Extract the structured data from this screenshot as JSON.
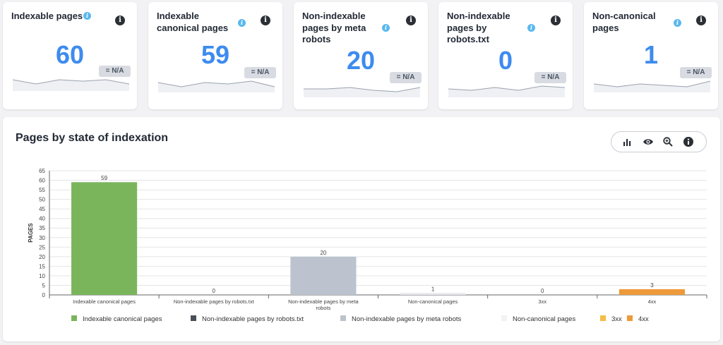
{
  "cards": [
    {
      "title": "Indexable pages",
      "value": "60",
      "badge": "= N/A",
      "spark": [
        7,
        4,
        7,
        6,
        7,
        4
      ]
    },
    {
      "title": "Indexable canonical pages",
      "value": "59",
      "badge": "= N/A",
      "spark": [
        6,
        3,
        6,
        5,
        7,
        3
      ]
    },
    {
      "title": "Non-indexable pages by meta robots",
      "value": "20",
      "badge": "= N/A",
      "spark": [
        5,
        5,
        6,
        4,
        3,
        6
      ]
    },
    {
      "title": "Non-indexable pages by robots.txt",
      "value": "0",
      "badge": "= N/A",
      "spark": [
        5,
        4,
        6,
        4,
        7,
        6
      ]
    },
    {
      "title": "Non-canonical pages",
      "value": "1",
      "badge": "= N/A",
      "spark": [
        5,
        3,
        5,
        4,
        3,
        7
      ]
    }
  ],
  "icons": {
    "title_info": "info-icon",
    "card_info": "info-icon",
    "toolbar": [
      "bar-chart-icon",
      "eye-icon",
      "zoom-icon",
      "info-icon"
    ]
  },
  "panel": {
    "title": "Pages by state of indexation"
  },
  "chart_data": {
    "type": "bar",
    "ylabel": "PAGES",
    "ylim": [
      0,
      65
    ],
    "yticks": [
      0,
      5,
      10,
      15,
      20,
      25,
      30,
      35,
      40,
      45,
      50,
      55,
      60,
      65
    ],
    "categories": [
      "Indexable canonical pages",
      "Non-indexable pages by robots.txt",
      "Non-indexable pages by meta robots",
      "Non-canonical pages",
      "3xx",
      "4xx"
    ],
    "tick_labels": [
      [
        "Indexable canonical pages"
      ],
      [
        "Non-indexable pages by robots.txt"
      ],
      [
        "Non-indexable pages by meta",
        "robots"
      ],
      [
        "Non-canonical pages"
      ],
      [
        "3xx"
      ],
      [
        "4xx"
      ]
    ],
    "values": [
      59,
      0,
      20,
      1,
      0,
      3
    ],
    "colors": [
      "#7ab55c",
      "#4a4f57",
      "#bcc3ce",
      "#e6e8ec",
      "#f4bd45",
      "#ee9a3a"
    ],
    "grid": true,
    "legend_position": "bottom",
    "legend": [
      {
        "name": "Indexable canonical pages",
        "color": "#7ab55c"
      },
      {
        "name": "Non-indexable pages by robots.txt",
        "color": "#4a4f57"
      },
      {
        "name": "Non-indexable pages by meta robots",
        "color": "#bcc3ce"
      },
      {
        "name": "Non-canonical pages",
        "color": "#f2f3f5"
      },
      {
        "name": "3xx",
        "color": "#f4bd45"
      },
      {
        "name": "4xx",
        "color": "#ee9a3a"
      }
    ]
  }
}
